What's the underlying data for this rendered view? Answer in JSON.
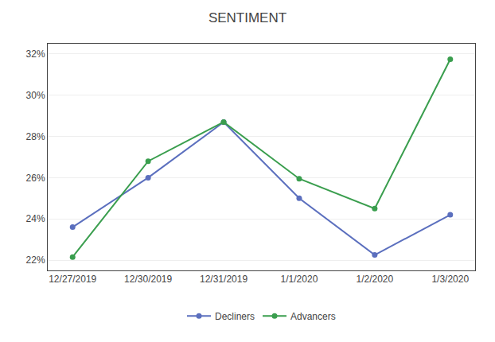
{
  "chart_data": {
    "type": "line",
    "title": "SENTIMENT",
    "categories": [
      "12/27/2019",
      "12/30/2019",
      "12/31/2019",
      "1/1/2020",
      "1/2/2020",
      "1/3/2020"
    ],
    "series": [
      {
        "name": "Decliners",
        "color": "#5b6fbe",
        "marker": "circle",
        "line_style": "solid",
        "values": [
          0.236,
          0.26,
          0.287,
          0.25,
          0.2225,
          0.242
        ]
      },
      {
        "name": "Advancers",
        "color": "#3a9e4e",
        "marker": "circle",
        "line_style": "solid",
        "values": [
          0.2215,
          0.268,
          0.287,
          0.2595,
          0.245,
          0.3175
        ]
      }
    ],
    "ylim": [
      0.215,
      0.325
    ],
    "yticks": [
      {
        "value": 0.22,
        "label": "22%"
      },
      {
        "value": 0.24,
        "label": "24%"
      },
      {
        "value": 0.26,
        "label": "26%"
      },
      {
        "value": 0.28,
        "label": "28%"
      },
      {
        "value": 0.3,
        "label": "30%"
      },
      {
        "value": 0.32,
        "label": "32%"
      }
    ],
    "grid": true,
    "legend": "bottom"
  }
}
